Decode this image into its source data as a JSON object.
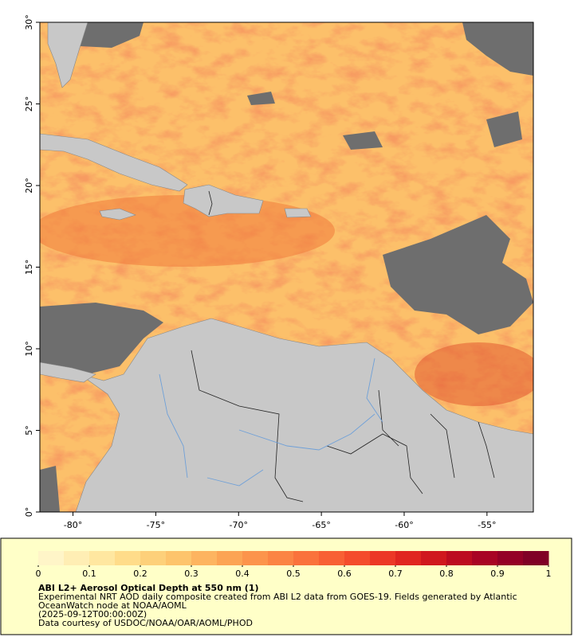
{
  "map": {
    "xlim": [
      -82,
      -52.2
    ],
    "ylim": [
      0,
      30
    ],
    "xticks": [
      {
        "value": -80,
        "label": "-80°"
      },
      {
        "value": -75,
        "label": "-75°"
      },
      {
        "value": -70,
        "label": "-70°"
      },
      {
        "value": -65,
        "label": "-65°"
      },
      {
        "value": -60,
        "label": "-60°"
      },
      {
        "value": -55,
        "label": "-55°"
      }
    ],
    "yticks": [
      {
        "value": 0,
        "label": "0°"
      },
      {
        "value": 5,
        "label": "5°"
      },
      {
        "value": 10,
        "label": "10°"
      },
      {
        "value": 15,
        "label": "15°"
      },
      {
        "value": 20,
        "label": "20°"
      },
      {
        "value": 25,
        "label": "25°"
      },
      {
        "value": 30,
        "label": "30°"
      }
    ]
  },
  "colorbar": {
    "range": [
      0,
      1
    ],
    "ticks": [
      0,
      0.1,
      0.2,
      0.3,
      0.4,
      0.5,
      0.6,
      0.7,
      0.8,
      0.9,
      1
    ],
    "colors": [
      "#fff5c8",
      "#ffeeb4",
      "#ffe7a0",
      "#ffdc8a",
      "#fdd07a",
      "#fdc46c",
      "#fdb460",
      "#fca454",
      "#fc944c",
      "#fb8444",
      "#fa723c",
      "#f86034",
      "#f44c2c",
      "#ec3826",
      "#e02620",
      "#d0181e",
      "#bc0c20",
      "#a80424",
      "#940026",
      "#800026"
    ]
  },
  "caption": {
    "title": "ABI L2+ Aerosol Optical Depth at 550 nm (1)",
    "lines": [
      "Experimental NRT AOD daily composite created from ABI L2 data from GOES-19. Fields generated by Atlantic",
      "OceanWatch node at NOAA/AOML",
      "(2025-09-12T00:00:00Z)",
      "Data courtesy of USDOC/NOAA/OAR/AOML/PHOD"
    ]
  }
}
